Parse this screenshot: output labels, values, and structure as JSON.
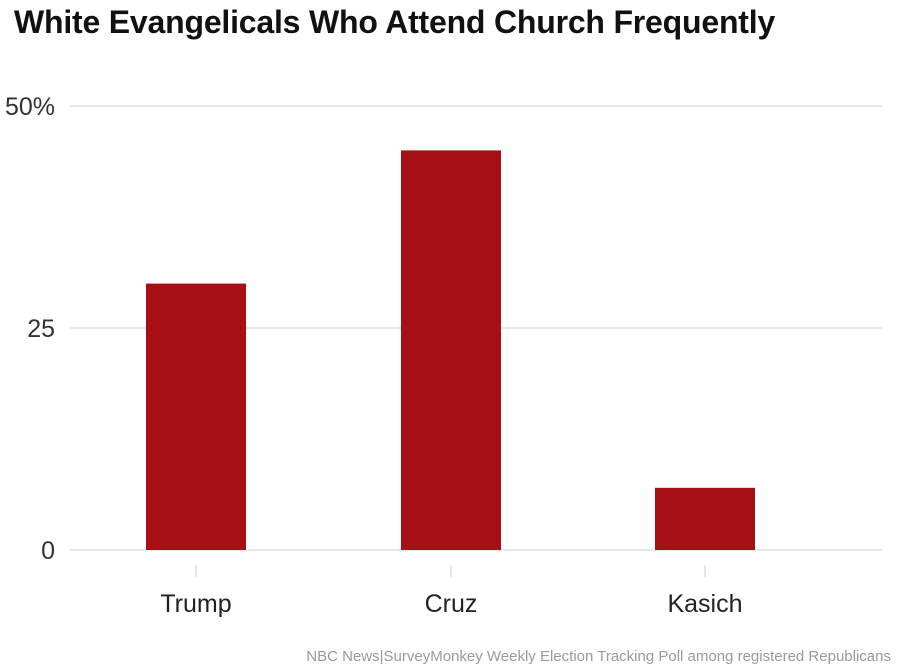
{
  "chart_data": {
    "type": "bar",
    "title": "White Evangelicals Who Attend Church Frequently",
    "categories": [
      "Trump",
      "Cruz",
      "Kasich"
    ],
    "values": [
      30,
      45,
      7
    ],
    "xlabel": "",
    "ylabel": "",
    "ylim": [
      0,
      50
    ],
    "yticks": [
      0,
      25,
      50
    ],
    "ytick_labels": [
      "0",
      "25",
      "50%"
    ],
    "grid": true,
    "legend": "none",
    "bar_color": "#a50f15",
    "source": "NBC News|SurveyMonkey Weekly Election Tracking Poll among registered Republicans"
  }
}
